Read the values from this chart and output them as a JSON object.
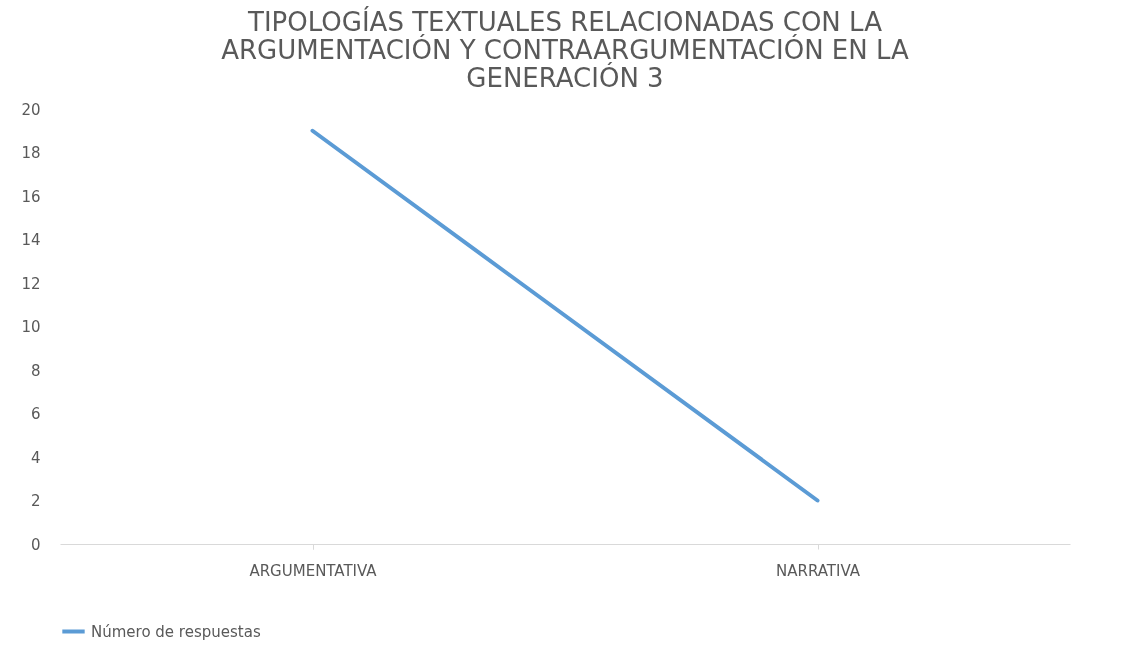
{
  "chart_data": {
    "type": "line",
    "title": "TIPOLOGÍAS TEXTUALES RELACIONADAS CON LA ARGUMENTACIÓN Y CONTRAARGUMENTACIÓN EN LA GENERACIÓN 3",
    "categories": [
      "ARGUMENTATIVA",
      "NARRATIVA"
    ],
    "series": [
      {
        "name": "Número de respuestas",
        "color": "#5b9bd5",
        "values": [
          19,
          2
        ]
      }
    ],
    "ylim": [
      0,
      20
    ],
    "yticks": [
      0,
      2,
      4,
      6,
      8,
      10,
      12,
      14,
      16,
      18,
      20
    ],
    "grid": false,
    "legend": "bottom"
  }
}
